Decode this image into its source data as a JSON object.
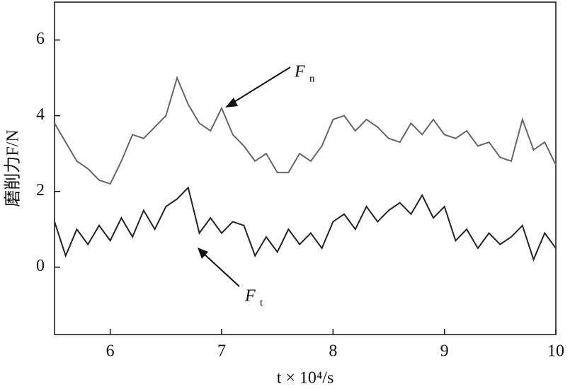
{
  "chart_data": {
    "type": "line",
    "x_label": "t × 10⁴/s",
    "y_label": "磨削力F/N",
    "x": [
      5.5,
      5.6,
      5.7,
      5.8,
      5.9,
      6.0,
      6.1,
      6.2,
      6.3,
      6.4,
      6.5,
      6.6,
      6.7,
      6.8,
      6.9,
      7.0,
      7.1,
      7.2,
      7.3,
      7.4,
      7.5,
      7.6,
      7.7,
      7.8,
      7.9,
      8.0,
      8.1,
      8.2,
      8.3,
      8.4,
      8.5,
      8.6,
      8.7,
      8.8,
      8.9,
      9.0,
      9.1,
      9.2,
      9.3,
      9.4,
      9.5,
      9.6,
      9.7,
      9.8,
      9.9,
      10.0
    ],
    "series": [
      {
        "color": "#666666",
        "values": [
          3.8,
          3.3,
          2.8,
          2.6,
          2.3,
          2.2,
          2.8,
          3.5,
          3.4,
          3.7,
          4.0,
          5.0,
          4.3,
          3.8,
          3.6,
          4.2,
          3.5,
          3.2,
          2.8,
          3.0,
          2.5,
          2.5,
          3.0,
          2.8,
          3.2,
          3.9,
          4.0,
          3.6,
          3.9,
          3.7,
          3.4,
          3.3,
          3.8,
          3.5,
          3.9,
          3.5,
          3.4,
          3.6,
          3.2,
          3.3,
          2.9,
          2.8,
          3.9,
          3.1,
          3.3,
          2.7
        ]
      },
      {
        "color": "#222222",
        "values": [
          1.2,
          0.3,
          1.0,
          0.6,
          1.1,
          0.7,
          1.3,
          0.8,
          1.5,
          1.0,
          1.6,
          1.8,
          2.1,
          0.9,
          1.3,
          0.9,
          1.2,
          1.1,
          0.3,
          0.8,
          0.4,
          1.0,
          0.6,
          0.9,
          0.5,
          1.2,
          1.4,
          1.0,
          1.6,
          1.2,
          1.5,
          1.7,
          1.4,
          1.9,
          1.3,
          1.6,
          0.7,
          1.0,
          0.5,
          0.9,
          0.6,
          0.8,
          1.1,
          0.2,
          0.9,
          0.5
        ]
      }
    ],
    "annotations": [
      {
        "text": "F",
        "subscript": "n"
      },
      {
        "text": "F",
        "subscript": "t"
      }
    ],
    "xlim": [
      5.5,
      10
    ],
    "ylim": [
      -1.78,
      7.0
    ],
    "xticks": [
      6,
      7,
      8,
      9,
      10
    ],
    "yticks": [
      0,
      2,
      4,
      6
    ]
  }
}
